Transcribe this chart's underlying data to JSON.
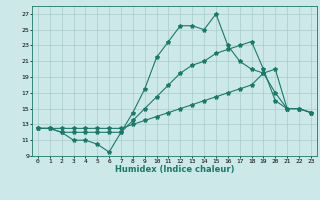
{
  "background_color": "#cce8e8",
  "grid_color": "#aacccc",
  "line_color": "#1a7a6a",
  "xlabel": "Humidex (Indice chaleur)",
  "xlim": [
    -0.5,
    23.5
  ],
  "ylim": [
    9,
    28
  ],
  "yticks": [
    9,
    11,
    13,
    15,
    17,
    19,
    21,
    23,
    25,
    27
  ],
  "xticks": [
    0,
    1,
    2,
    3,
    4,
    5,
    6,
    7,
    8,
    9,
    10,
    11,
    12,
    13,
    14,
    15,
    16,
    17,
    18,
    19,
    20,
    21,
    22,
    23
  ],
  "series": [
    {
      "x": [
        0,
        1,
        2,
        3,
        4,
        5,
        6,
        7,
        8,
        9,
        10,
        11,
        12,
        13,
        14,
        15,
        16,
        17,
        18,
        19,
        20,
        21,
        22,
        23
      ],
      "y": [
        12.5,
        12.5,
        12.5,
        12.5,
        12.5,
        12.5,
        12.5,
        12.5,
        13.0,
        13.5,
        14.0,
        14.5,
        15.0,
        15.5,
        16.0,
        16.5,
        17.0,
        17.5,
        18.0,
        19.5,
        20.0,
        15.0,
        15.0,
        14.5
      ]
    },
    {
      "x": [
        0,
        1,
        2,
        3,
        4,
        5,
        6,
        7,
        8,
        9,
        10,
        11,
        12,
        13,
        14,
        15,
        16,
        17,
        18,
        19,
        20,
        21,
        22,
        23
      ],
      "y": [
        12.5,
        12.5,
        12.0,
        12.0,
        12.0,
        12.0,
        12.0,
        12.0,
        13.5,
        15.0,
        16.5,
        18.0,
        19.5,
        20.5,
        21.0,
        22.0,
        22.5,
        23.0,
        23.5,
        20.0,
        16.0,
        15.0,
        15.0,
        14.5
      ]
    },
    {
      "x": [
        0,
        1,
        2,
        3,
        4,
        5,
        6,
        7,
        8,
        9,
        10,
        11,
        12,
        13,
        14,
        15,
        16,
        17,
        18,
        19,
        20,
        21,
        22,
        23
      ],
      "y": [
        12.5,
        12.5,
        12.0,
        11.0,
        11.0,
        10.5,
        9.5,
        12.0,
        14.5,
        17.5,
        21.5,
        23.5,
        25.5,
        25.5,
        25.0,
        27.0,
        23.0,
        21.0,
        20.0,
        19.5,
        17.0,
        15.0,
        15.0,
        14.5
      ]
    }
  ]
}
